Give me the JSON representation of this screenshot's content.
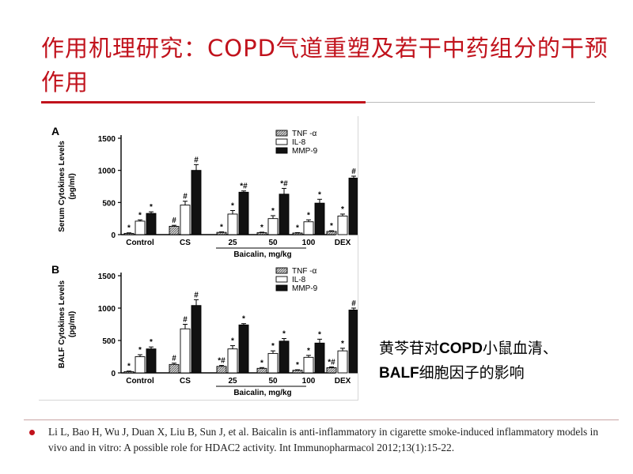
{
  "slide": {
    "title": "作用机理研究：COPD气道重塑及若干中药组分的干预作用",
    "caption_bold_1": "黄芩苷对",
    "caption_bold_1b": "COPD",
    "caption_rest_1": "小鼠血清、",
    "caption_bold_2": "BALF",
    "caption_rest_2": "细胞因子的影响",
    "reference": "Li L, Bao H, Wu J, Duan X, Liu B, Sun J, et al. Baicalin is anti-inflammatory in cigarette smoke-induced inflammatory models in vivo and in vitro: A possible role for HDAC2 activity. Int Immunopharmacol 2012;13(1):15-22."
  },
  "colors": {
    "title": "#c1121c",
    "tnf": "#9a9a9a",
    "il8": "#ffffff",
    "mmp9": "#111111"
  },
  "chart_data": [
    {
      "type": "bar",
      "panel_label": "A",
      "ylabel": "Serum Cytokines Levels\n(pg/ml)",
      "xlabel": "Baicalin, mg/kg",
      "categories": [
        "Control",
        "CS",
        "25",
        "50",
        "100",
        "DEX"
      ],
      "ylim": [
        0,
        1500
      ],
      "yticks": [
        0,
        500,
        1000,
        1500
      ],
      "legend_position": "top-right",
      "series": [
        {
          "name": "TNF -α",
          "values": [
            20,
            130,
            35,
            30,
            25,
            50
          ],
          "errors": [
            8,
            15,
            8,
            8,
            6,
            10
          ],
          "marks": [
            "*",
            "#",
            "*",
            "*",
            "*",
            "*"
          ]
        },
        {
          "name": "IL-8",
          "values": [
            210,
            460,
            320,
            250,
            200,
            290
          ],
          "errors": [
            20,
            60,
            55,
            45,
            30,
            30
          ],
          "marks": [
            "*",
            "#",
            "*",
            "*",
            "*",
            "*"
          ]
        },
        {
          "name": "MMP-9",
          "values": [
            330,
            1000,
            660,
            630,
            490,
            880
          ],
          "errors": [
            25,
            90,
            20,
            90,
            60,
            30
          ],
          "marks": [
            "*",
            "#",
            "*#",
            "*#",
            "*",
            "#"
          ]
        }
      ]
    },
    {
      "type": "bar",
      "panel_label": "B",
      "ylabel": "BALF Cytokines Levels\n(pg/ml)",
      "xlabel": "Baicalin, mg/kg",
      "categories": [
        "Control",
        "CS",
        "25",
        "50",
        "100",
        "DEX"
      ],
      "ylim": [
        0,
        1500
      ],
      "yticks": [
        0,
        500,
        1000,
        1500
      ],
      "legend_position": "top-right",
      "series": [
        {
          "name": "TNF -α",
          "values": [
            20,
            130,
            100,
            70,
            40,
            80
          ],
          "errors": [
            8,
            20,
            15,
            12,
            8,
            12
          ],
          "marks": [
            "*",
            "#",
            "*#",
            "*",
            "*",
            "*#"
          ]
        },
        {
          "name": "IL-8",
          "values": [
            250,
            680,
            370,
            300,
            240,
            340
          ],
          "errors": [
            30,
            70,
            50,
            40,
            30,
            40
          ],
          "marks": [
            "*",
            "#",
            "*",
            "*",
            "*",
            "*"
          ]
        },
        {
          "name": "MMP-9",
          "values": [
            370,
            1040,
            740,
            490,
            460,
            970
          ],
          "errors": [
            30,
            90,
            20,
            40,
            60,
            30
          ],
          "marks": [
            "*",
            "#",
            "*",
            "*",
            "*",
            "#"
          ]
        }
      ]
    }
  ]
}
